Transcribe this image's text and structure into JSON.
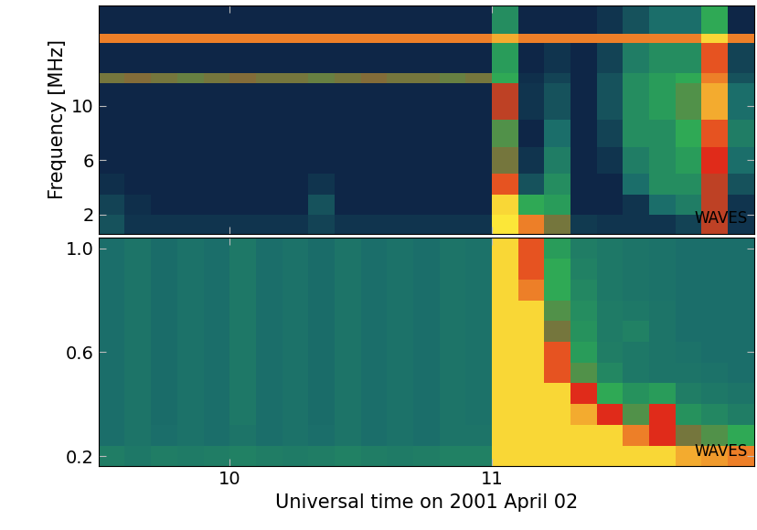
{
  "chart_data": [
    {
      "type": "heatmap",
      "y_label": "Frequency [MHz]",
      "annotations": [
        "WAVES"
      ],
      "tick_labels": "y",
      "xlim": [
        9.5,
        12.0
      ],
      "xticks": [
        10,
        11
      ],
      "ylim": [
        0.6,
        17.4
      ],
      "yticks": [
        2,
        6,
        10
      ],
      "intensity_range": [
        0,
        1
      ],
      "x_edges": [
        9.5,
        9.6,
        9.7,
        9.8,
        9.9,
        10.0,
        10.1,
        10.2,
        10.3,
        10.4,
        10.5,
        10.6,
        10.7,
        10.8,
        10.9,
        11.0,
        11.1,
        11.2,
        11.3,
        11.4,
        11.5,
        11.6,
        11.7,
        11.8,
        11.9,
        12.0
      ],
      "y_edges": [
        0.6,
        2,
        3.5,
        5,
        7,
        9,
        11.7,
        12.4,
        14.6,
        15.3,
        17.4
      ],
      "cells": [
        [
          0.2,
          0.1,
          0.1,
          0.1,
          0.1,
          0.1,
          0.1,
          0.1,
          0.15,
          0.1,
          0.1,
          0.1,
          0.1,
          0.1,
          0.1,
          0.97,
          0.85,
          0.6,
          0.12,
          0.1,
          0.1,
          0.1,
          0.15,
          0.7,
          0.1
        ],
        [
          0.15,
          0.08,
          0.05,
          0.05,
          0.05,
          0.05,
          0.05,
          0.05,
          0.2,
          0.05,
          0.05,
          0.05,
          0.05,
          0.05,
          0.05,
          0.95,
          0.5,
          0.45,
          0.05,
          0.05,
          0.1,
          0.3,
          0.35,
          0.7,
          0.1
        ],
        [
          0.08,
          0.05,
          0.05,
          0.05,
          0.05,
          0.05,
          0.05,
          0.05,
          0.1,
          0.05,
          0.05,
          0.05,
          0.05,
          0.05,
          0.05,
          0.8,
          0.2,
          0.4,
          0.05,
          0.05,
          0.3,
          0.4,
          0.4,
          0.7,
          0.2
        ],
        [
          0.05,
          0.05,
          0.05,
          0.05,
          0.05,
          0.05,
          0.05,
          0.05,
          0.05,
          0.05,
          0.05,
          0.05,
          0.05,
          0.05,
          0.05,
          0.6,
          0.1,
          0.35,
          0.05,
          0.1,
          0.35,
          0.4,
          0.45,
          0.75,
          0.3
        ],
        [
          0.05,
          0.05,
          0.05,
          0.05,
          0.05,
          0.05,
          0.05,
          0.05,
          0.05,
          0.05,
          0.05,
          0.05,
          0.05,
          0.05,
          0.05,
          0.55,
          0.05,
          0.3,
          0.05,
          0.15,
          0.4,
          0.4,
          0.5,
          0.8,
          0.35
        ],
        [
          0.05,
          0.05,
          0.05,
          0.05,
          0.05,
          0.05,
          0.05,
          0.05,
          0.05,
          0.05,
          0.05,
          0.05,
          0.05,
          0.05,
          0.05,
          0.7,
          0.1,
          0.2,
          0.05,
          0.2,
          0.4,
          0.45,
          0.55,
          0.9,
          0.3
        ],
        [
          0.6,
          0.62,
          0.6,
          0.58,
          0.6,
          0.62,
          0.6,
          0.6,
          0.58,
          0.6,
          0.62,
          0.6,
          0.6,
          0.58,
          0.6,
          0.5,
          0.08,
          0.15,
          0.05,
          0.2,
          0.4,
          0.45,
          0.5,
          0.85,
          0.2
        ],
        [
          0.05,
          0.05,
          0.05,
          0.05,
          0.05,
          0.05,
          0.05,
          0.05,
          0.05,
          0.05,
          0.05,
          0.05,
          0.05,
          0.05,
          0.05,
          0.45,
          0.05,
          0.1,
          0.05,
          0.15,
          0.35,
          0.4,
          0.4,
          0.8,
          0.15
        ],
        [
          0.85,
          0.85,
          0.85,
          0.85,
          0.85,
          0.85,
          0.85,
          0.85,
          0.85,
          0.85,
          0.85,
          0.85,
          0.85,
          0.85,
          0.85,
          0.9,
          0.85,
          0.85,
          0.85,
          0.85,
          0.85,
          0.85,
          0.85,
          0.95,
          0.85
        ],
        [
          0.05,
          0.05,
          0.05,
          0.05,
          0.05,
          0.05,
          0.05,
          0.05,
          0.05,
          0.05,
          0.05,
          0.05,
          0.05,
          0.05,
          0.05,
          0.4,
          0.05,
          0.05,
          0.05,
          0.1,
          0.2,
          0.3,
          0.3,
          0.5,
          0.05
        ]
      ]
    },
    {
      "type": "heatmap",
      "x_label": "Universal time on 2001 April 02",
      "annotations": [
        "WAVES"
      ],
      "xlim": [
        9.5,
        12.0
      ],
      "xticks": [
        10,
        11
      ],
      "ylim": [
        0.16,
        1.04
      ],
      "yticks": [
        0.2,
        0.6,
        1.0
      ],
      "intensity_range": [
        0,
        1
      ],
      "x_edges": [
        9.5,
        9.6,
        9.7,
        9.8,
        9.9,
        10.0,
        10.1,
        10.2,
        10.3,
        10.4,
        10.5,
        10.6,
        10.7,
        10.8,
        10.9,
        11.0,
        11.1,
        11.2,
        11.3,
        11.4,
        11.5,
        11.6,
        11.7,
        11.8,
        11.9,
        12.0
      ],
      "y_edges": [
        0.16,
        0.24,
        0.32,
        0.4,
        0.48,
        0.56,
        0.64,
        0.72,
        0.8,
        0.88,
        0.96,
        1.04
      ],
      "cells": [
        [
          0.35,
          0.33,
          0.35,
          0.34,
          0.35,
          0.36,
          0.35,
          0.34,
          0.35,
          0.36,
          0.35,
          0.34,
          0.35,
          0.36,
          0.36,
          0.95,
          0.95,
          0.95,
          0.95,
          0.95,
          0.95,
          0.95,
          0.9,
          0.88,
          0.85
        ],
        [
          0.3,
          0.32,
          0.3,
          0.31,
          0.3,
          0.32,
          0.3,
          0.31,
          0.3,
          0.32,
          0.3,
          0.31,
          0.3,
          0.32,
          0.32,
          0.95,
          0.95,
          0.95,
          0.95,
          0.95,
          0.85,
          0.75,
          0.6,
          0.55,
          0.5
        ],
        [
          0.3,
          0.32,
          0.29,
          0.31,
          0.3,
          0.33,
          0.3,
          0.31,
          0.29,
          0.32,
          0.3,
          0.31,
          0.3,
          0.32,
          0.31,
          0.95,
          0.95,
          0.95,
          0.9,
          0.75,
          0.55,
          0.75,
          0.42,
          0.38,
          0.35
        ],
        [
          0.3,
          0.32,
          0.29,
          0.31,
          0.3,
          0.33,
          0.3,
          0.31,
          0.29,
          0.32,
          0.3,
          0.31,
          0.3,
          0.32,
          0.31,
          0.95,
          0.95,
          0.95,
          0.75,
          0.5,
          0.42,
          0.45,
          0.35,
          0.33,
          0.32
        ],
        [
          0.3,
          0.32,
          0.29,
          0.31,
          0.3,
          0.33,
          0.3,
          0.31,
          0.29,
          0.32,
          0.3,
          0.31,
          0.3,
          0.32,
          0.31,
          0.95,
          0.95,
          0.8,
          0.55,
          0.38,
          0.33,
          0.32,
          0.32,
          0.31,
          0.3
        ],
        [
          0.3,
          0.32,
          0.29,
          0.31,
          0.3,
          0.33,
          0.3,
          0.31,
          0.29,
          0.32,
          0.3,
          0.31,
          0.3,
          0.32,
          0.31,
          0.95,
          0.95,
          0.8,
          0.45,
          0.35,
          0.33,
          0.32,
          0.31,
          0.3,
          0.3
        ],
        [
          0.3,
          0.32,
          0.29,
          0.31,
          0.3,
          0.33,
          0.3,
          0.31,
          0.29,
          0.32,
          0.3,
          0.31,
          0.3,
          0.32,
          0.31,
          0.95,
          0.95,
          0.6,
          0.42,
          0.34,
          0.36,
          0.32,
          0.3,
          0.3,
          0.3
        ],
        [
          0.3,
          0.32,
          0.29,
          0.31,
          0.3,
          0.33,
          0.3,
          0.31,
          0.29,
          0.32,
          0.3,
          0.31,
          0.3,
          0.32,
          0.31,
          0.95,
          0.95,
          0.55,
          0.4,
          0.34,
          0.33,
          0.32,
          0.3,
          0.3,
          0.3
        ],
        [
          0.3,
          0.32,
          0.29,
          0.31,
          0.3,
          0.33,
          0.3,
          0.31,
          0.29,
          0.32,
          0.3,
          0.31,
          0.3,
          0.32,
          0.31,
          0.95,
          0.85,
          0.5,
          0.38,
          0.33,
          0.32,
          0.31,
          0.3,
          0.3,
          0.3
        ],
        [
          0.3,
          0.32,
          0.29,
          0.31,
          0.3,
          0.33,
          0.3,
          0.31,
          0.29,
          0.32,
          0.3,
          0.31,
          0.3,
          0.32,
          0.31,
          0.95,
          0.8,
          0.5,
          0.36,
          0.33,
          0.32,
          0.31,
          0.3,
          0.3,
          0.3
        ],
        [
          0.3,
          0.32,
          0.29,
          0.31,
          0.3,
          0.33,
          0.3,
          0.31,
          0.29,
          0.32,
          0.3,
          0.31,
          0.3,
          0.32,
          0.31,
          0.95,
          0.8,
          0.45,
          0.35,
          0.33,
          0.32,
          0.31,
          0.3,
          0.3,
          0.3
        ]
      ]
    }
  ]
}
